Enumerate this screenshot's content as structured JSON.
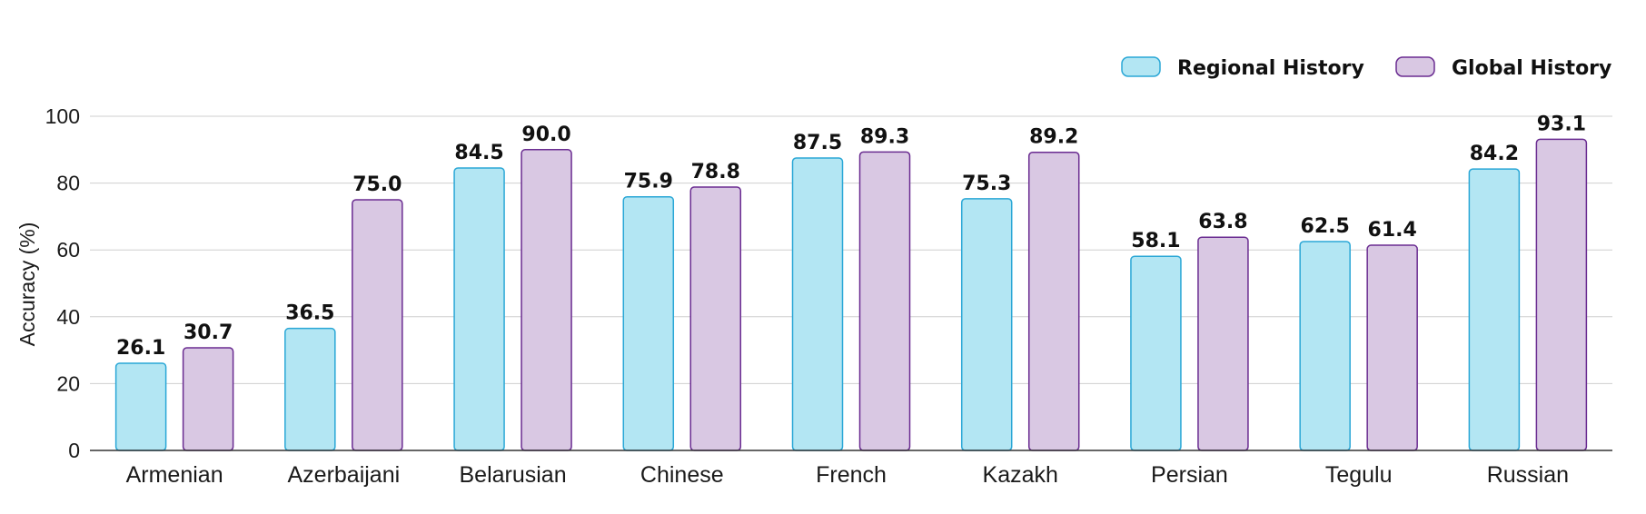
{
  "chart_data": {
    "type": "bar",
    "title": "",
    "xlabel": "",
    "ylabel": "Accuracy (%)",
    "ylim": [
      0,
      100
    ],
    "yticks": [
      0,
      20,
      40,
      60,
      80,
      100
    ],
    "grid": true,
    "legend_position": "top-right",
    "categories": [
      "Armenian",
      "Azerbaijani",
      "Belarusian",
      "Chinese",
      "French",
      "Kazakh",
      "Persian",
      "Tegulu",
      "Russian"
    ],
    "series": [
      {
        "name": "Regional History",
        "color": "#b3e6f3",
        "stroke": "#2aa7d6",
        "values": [
          26.1,
          36.5,
          84.5,
          75.9,
          87.5,
          75.3,
          58.1,
          62.5,
          84.2
        ],
        "labels": [
          "26.1",
          "36.5",
          "84.5",
          "75.9",
          "87.5",
          "75.3",
          "58.1",
          "62.5",
          "84.2"
        ]
      },
      {
        "name": "Global History",
        "color": "#d9c8e3",
        "stroke": "#6a2c91",
        "values": [
          30.7,
          75.0,
          90.0,
          78.8,
          89.3,
          89.2,
          63.8,
          61.4,
          93.1
        ],
        "labels": [
          "30.7",
          "75.0",
          "90.0",
          "78.8",
          "89.3",
          "89.2",
          "63.8",
          "61.4",
          "93.1"
        ]
      }
    ]
  }
}
